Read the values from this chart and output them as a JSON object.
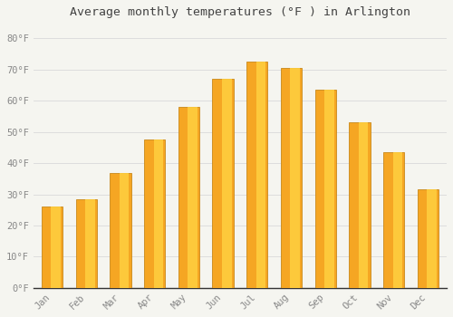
{
  "months": [
    "Jan",
    "Feb",
    "Mar",
    "Apr",
    "May",
    "Jun",
    "Jul",
    "Aug",
    "Sep",
    "Oct",
    "Nov",
    "Dec"
  ],
  "values": [
    26,
    28.5,
    37,
    47.5,
    58,
    67,
    72.5,
    70.5,
    63.5,
    53,
    43.5,
    31.5
  ],
  "bar_color_left": "#F5A623",
  "bar_color_right": "#FFD040",
  "bar_edge_color": "#C8881A",
  "background_color": "#F5F5F0",
  "grid_color": "#DDDDDD",
  "title": "Average monthly temperatures (°F ) in Arlington",
  "title_fontsize": 9.5,
  "tick_label_color": "#888888",
  "axis_line_color": "#333333",
  "ylim": [
    0,
    85
  ],
  "yticks": [
    0,
    10,
    20,
    30,
    40,
    50,
    60,
    70,
    80
  ],
  "ytick_labels": [
    "0°F",
    "10°F",
    "20°F",
    "30°F",
    "40°F",
    "50°F",
    "60°F",
    "70°F",
    "80°F"
  ]
}
